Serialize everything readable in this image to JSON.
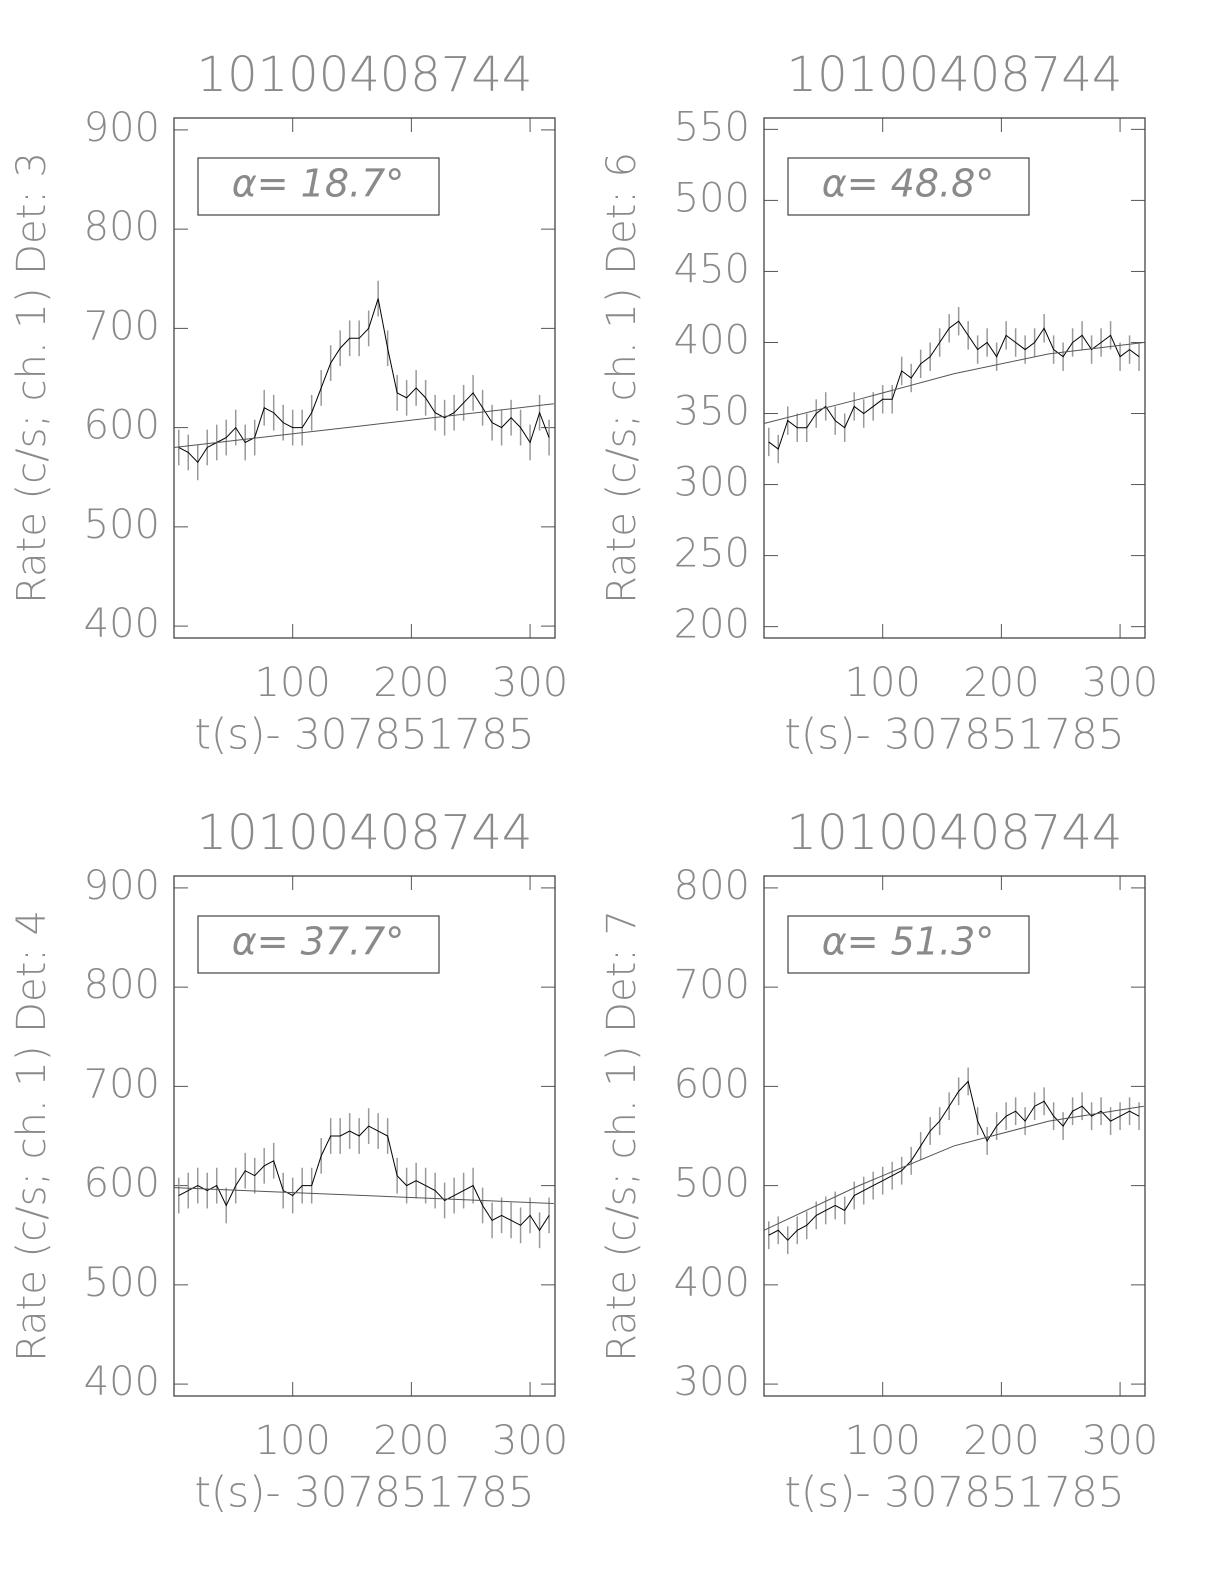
{
  "chart_data": [
    {
      "type": "line",
      "title": "10100408744",
      "xlabel": "t(s)- 307851785",
      "ylabel": "Rate (c/s; ch. 1) Det: 3",
      "annotation": "α= 18.7°",
      "x": [
        4,
        12,
        20,
        28,
        36,
        44,
        52,
        60,
        68,
        76,
        84,
        92,
        100,
        108,
        116,
        124,
        132,
        140,
        148,
        156,
        164,
        172,
        180,
        188,
        196,
        204,
        212,
        220,
        228,
        236,
        244,
        252,
        260,
        268,
        276,
        284,
        292,
        300,
        308,
        316
      ],
      "values": [
        580,
        575,
        565,
        580,
        585,
        590,
        600,
        585,
        590,
        620,
        615,
        605,
        600,
        600,
        615,
        640,
        665,
        680,
        690,
        690,
        700,
        730,
        680,
        635,
        630,
        640,
        630,
        615,
        610,
        615,
        625,
        635,
        620,
        605,
        600,
        610,
        600,
        585,
        615,
        590
      ],
      "error": 18,
      "color": "#000000",
      "error_color": "#999999",
      "fit": {
        "x": [
          0,
          80,
          160,
          240,
          320
        ],
        "values": [
          580,
          591,
          602,
          613,
          624
        ],
        "color": "#555555"
      },
      "xlim": [
        0,
        321
      ],
      "ylim": [
        388,
        912
      ],
      "xticks": [
        100,
        200,
        300
      ],
      "yticks": [
        400,
        500,
        600,
        700,
        800,
        900
      ]
    },
    {
      "type": "line",
      "title": "10100408744",
      "xlabel": "t(s)- 307851785",
      "ylabel": "Rate (c/s; ch. 1) Det: 6",
      "annotation": "α= 48.8°",
      "x": [
        4,
        12,
        20,
        28,
        36,
        44,
        52,
        60,
        68,
        76,
        84,
        92,
        100,
        108,
        116,
        124,
        132,
        140,
        148,
        156,
        164,
        172,
        180,
        188,
        196,
        204,
        212,
        220,
        228,
        236,
        244,
        252,
        260,
        268,
        276,
        284,
        292,
        300,
        308,
        316
      ],
      "values": [
        330,
        325,
        345,
        340,
        340,
        350,
        355,
        345,
        340,
        355,
        350,
        355,
        360,
        360,
        380,
        375,
        385,
        390,
        400,
        410,
        415,
        405,
        395,
        400,
        390,
        405,
        400,
        395,
        400,
        410,
        395,
        390,
        400,
        405,
        395,
        400,
        405,
        390,
        395,
        390
      ],
      "error": 10,
      "color": "#000000",
      "error_color": "#999999",
      "fit": {
        "x": [
          0,
          80,
          160,
          240,
          320
        ],
        "values": [
          343,
          360,
          378,
          392,
          400
        ],
        "color": "#555555"
      },
      "xlim": [
        0,
        321
      ],
      "ylim": [
        192,
        558
      ],
      "xticks": [
        100,
        200,
        300
      ],
      "yticks": [
        200,
        250,
        300,
        350,
        400,
        450,
        500,
        550
      ]
    },
    {
      "type": "line",
      "title": "10100408744",
      "xlabel": "t(s)- 307851785",
      "ylabel": "Rate (c/s; ch. 1) Det: 4",
      "annotation": "α= 37.7°",
      "x": [
        4,
        12,
        20,
        28,
        36,
        44,
        52,
        60,
        68,
        76,
        84,
        92,
        100,
        108,
        116,
        124,
        132,
        140,
        148,
        156,
        164,
        172,
        180,
        188,
        196,
        204,
        212,
        220,
        228,
        236,
        244,
        252,
        260,
        268,
        276,
        284,
        292,
        300,
        308,
        316
      ],
      "values": [
        590,
        595,
        600,
        595,
        600,
        580,
        600,
        615,
        610,
        620,
        625,
        595,
        590,
        600,
        600,
        630,
        650,
        650,
        655,
        650,
        660,
        655,
        650,
        610,
        600,
        605,
        600,
        595,
        585,
        590,
        595,
        600,
        580,
        565,
        570,
        565,
        560,
        570,
        555,
        570
      ],
      "error": 18,
      "color": "#000000",
      "error_color": "#999999",
      "fit": {
        "x": [
          0,
          80,
          160,
          240,
          320
        ],
        "values": [
          598,
          594,
          590,
          586,
          582
        ],
        "color": "#555555"
      },
      "xlim": [
        0,
        321
      ],
      "ylim": [
        388,
        912
      ],
      "xticks": [
        100,
        200,
        300
      ],
      "yticks": [
        400,
        500,
        600,
        700,
        800,
        900
      ]
    },
    {
      "type": "line",
      "title": "10100408744",
      "xlabel": "t(s)- 307851785",
      "ylabel": "Rate (c/s; ch. 1) Det: 7",
      "annotation": "α= 51.3°",
      "x": [
        4,
        12,
        20,
        28,
        36,
        44,
        52,
        60,
        68,
        76,
        84,
        92,
        100,
        108,
        116,
        124,
        132,
        140,
        148,
        156,
        164,
        172,
        180,
        188,
        196,
        204,
        212,
        220,
        228,
        236,
        244,
        252,
        260,
        268,
        276,
        284,
        292,
        300,
        308,
        316
      ],
      "values": [
        450,
        455,
        445,
        455,
        460,
        470,
        475,
        480,
        475,
        490,
        495,
        500,
        505,
        510,
        515,
        525,
        540,
        555,
        565,
        580,
        595,
        605,
        565,
        545,
        560,
        570,
        575,
        565,
        580,
        585,
        570,
        560,
        575,
        580,
        570,
        575,
        565,
        570,
        575,
        570
      ],
      "error": 14,
      "color": "#000000",
      "error_color": "#999999",
      "fit": {
        "x": [
          0,
          80,
          160,
          240,
          320
        ],
        "values": [
          455,
          500,
          540,
          565,
          580
        ],
        "color": "#555555"
      },
      "xlim": [
        0,
        321
      ],
      "ylim": [
        288,
        812
      ],
      "xticks": [
        100,
        200,
        300
      ],
      "yticks": [
        300,
        400,
        500,
        600,
        700,
        800
      ]
    }
  ]
}
